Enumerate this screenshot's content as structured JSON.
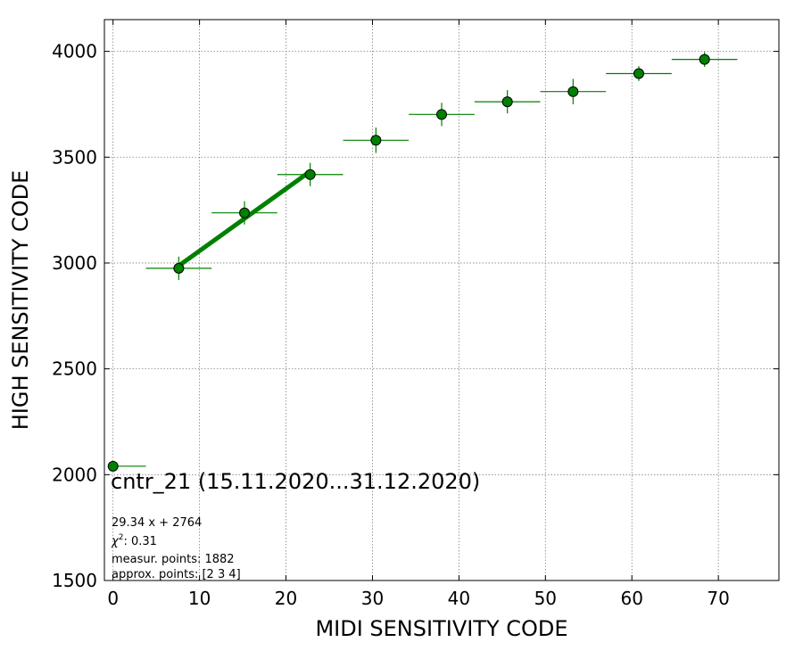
{
  "chart_data": {
    "type": "scatter",
    "title": "cntr_21 (15.11.2020...31.12.2020)",
    "xlabel": "MIDI SENSITIVITY CODE",
    "ylabel": "HIGH SENSITIVITY CODE",
    "xlim": [
      -1,
      77
    ],
    "ylim": [
      1500,
      4150
    ],
    "xticks": [
      0,
      10,
      20,
      30,
      40,
      50,
      60,
      70
    ],
    "yticks": [
      1500,
      2000,
      2500,
      3000,
      3500,
      4000
    ],
    "grid": true,
    "colors": {
      "points": "#008000",
      "edge": "#000000",
      "fit": "#008000",
      "grid": "#808080"
    },
    "points": [
      {
        "x": 0.0,
        "y": 2040,
        "xerr": [
          0.0,
          3.8
        ],
        "yerr": 0
      },
      {
        "x": 7.6,
        "y": 2975,
        "xerr": [
          3.8,
          3.8
        ],
        "yerr": 55
      },
      {
        "x": 15.2,
        "y": 3237,
        "xerr": [
          3.8,
          3.8
        ],
        "yerr": 55
      },
      {
        "x": 22.8,
        "y": 3418,
        "xerr": [
          3.8,
          3.8
        ],
        "yerr": 55
      },
      {
        "x": 30.4,
        "y": 3580,
        "xerr": [
          3.8,
          3.8
        ],
        "yerr": 60
      },
      {
        "x": 38.0,
        "y": 3702,
        "xerr": [
          3.8,
          3.8
        ],
        "yerr": 55
      },
      {
        "x": 45.6,
        "y": 3762,
        "xerr": [
          3.8,
          3.8
        ],
        "yerr": 55
      },
      {
        "x": 53.2,
        "y": 3810,
        "xerr": [
          3.8,
          3.8
        ],
        "yerr": 60
      },
      {
        "x": 60.8,
        "y": 3895,
        "xerr": [
          3.8,
          3.8
        ],
        "yerr": 35
      },
      {
        "x": 68.4,
        "y": 3962,
        "xerr": [
          3.8,
          3.8
        ],
        "yerr": 35
      }
    ],
    "fit": {
      "slope": 29.34,
      "intercept": 2764,
      "x_range": [
        7.6,
        22.8
      ]
    },
    "annotations": {
      "equation": "29.34 x + 2764",
      "chi2_label": "χ",
      "chi2_sup": "2",
      "chi2_value": ": 0.31",
      "measured": "measur. points: 1882",
      "approx": "approx. points: [2 3 4]"
    }
  }
}
